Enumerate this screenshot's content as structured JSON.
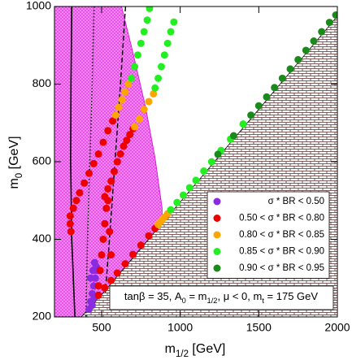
{
  "chart_data": {
    "type": "scatter",
    "x_label": [
      "m",
      "1/2",
      " [GeV]"
    ],
    "y_label": [
      "m",
      "0",
      " [GeV]"
    ],
    "annotation": [
      "tanβ = 35, A",
      "0",
      " = m",
      "1/2",
      ", μ < 0, m",
      "t",
      " = 175 GeV"
    ],
    "xlim": [
      200,
      2000
    ],
    "ylim": [
      200,
      1000
    ],
    "xticks": [
      500,
      1000,
      1500,
      2000
    ],
    "yticks": [
      200,
      400,
      600,
      800,
      1000
    ],
    "legend": "lower right",
    "areas": [
      {
        "color": "#ee88ee",
        "edge": "#dd00dd",
        "pattern": "dots",
        "x": [
          200,
          200,
          627,
          700,
          780,
          840,
          885,
          884,
          700,
          500,
          370
        ],
        "y": [
          200,
          1000,
          1000,
          880,
          740,
          610,
          480,
          441,
          353,
          257,
          200
        ]
      },
      {
        "color": "#5a2a2a",
        "edge": "#000000",
        "pattern": "bricks",
        "x": [
          370,
          500,
          700,
          884,
          1000,
          1500,
          2000,
          2000
        ],
        "y": [
          200,
          257,
          353,
          441,
          496,
          735,
          975,
          200
        ]
      }
    ],
    "lines": [
      {
        "style": "solid",
        "color": "#000000",
        "x": [
          310,
          305,
          303,
          310,
          330
        ],
        "y": [
          1000,
          800,
          600,
          400,
          200
        ]
      },
      {
        "style": "dotted",
        "color": "#000000",
        "x": [
          452,
          440,
          425,
          410,
          400
        ],
        "y": [
          1000,
          800,
          600,
          400,
          200
        ]
      },
      {
        "style": "dashed",
        "color": "#000000",
        "x": [
          652,
          620,
          585,
          550,
          524
        ],
        "y": [
          1000,
          800,
          600,
          400,
          263
        ]
      }
    ],
    "series": [
      {
        "name": "σ * BR < 0.50",
        "color": "#8a2be2",
        "x": [
          420,
          430,
          440,
          450,
          460,
          470,
          430,
          445,
          455,
          465,
          440,
          455
        ],
        "y": [
          220,
          240,
          260,
          280,
          300,
          320,
          300,
          320,
          340,
          330,
          230,
          250
        ]
      },
      {
        "name": "0.50 < σ * BR < 0.80",
        "color": "#ee0000",
        "x": [
          300,
          305,
          300,
          320,
          340,
          360,
          390,
          420,
          450,
          480,
          510,
          540,
          570,
          520,
          540,
          560,
          580,
          600,
          620,
          640,
          660,
          680,
          700,
          480,
          490,
          500,
          510,
          520,
          530,
          540,
          550,
          560,
          480,
          520,
          560,
          600,
          650,
          700,
          750,
          800,
          840
        ],
        "y": [
          440,
          420,
          460,
          480,
          500,
          520,
          545,
          570,
          595,
          620,
          650,
          680,
          705,
          510,
          530,
          550,
          575,
          600,
          620,
          640,
          655,
          670,
          685,
          280,
          320,
          360,
          400,
          440,
          480,
          500,
          420,
          360,
          256,
          275,
          294,
          313,
          337,
          361,
          385,
          409,
          428
        ]
      },
      {
        "name": "0.80 < σ * BR < 0.85",
        "color": "#ffa500",
        "x": [
          590,
          610,
          630,
          650,
          670,
          710,
          740,
          770,
          800,
          830,
          860,
          880,
          900,
          920
        ],
        "y": [
          720,
          740,
          760,
          780,
          800,
          690,
          710,
          735,
          755,
          775,
          438,
          447,
          457,
          466
        ]
      },
      {
        "name": "0.85 < σ * BR < 0.90",
        "color": "#22ee22",
        "x": [
          690,
          710,
          730,
          750,
          770,
          790,
          805,
          840,
          860,
          880,
          900,
          920,
          940,
          960,
          940,
          980,
          1020,
          1060,
          1100,
          1150,
          1200,
          1260,
          1320,
          1400
        ],
        "y": [
          815,
          845,
          875,
          905,
          935,
          965,
          995,
          790,
          815,
          845,
          875,
          905,
          935,
          960,
          476,
          495,
          514,
          533,
          552,
          576,
          600,
          629,
          658,
          697
        ]
      },
      {
        "name": "0.90 < σ * BR < 0.95",
        "color": "#1a8a1a",
        "x": [
          1240,
          1340,
          1450,
          1500,
          1550,
          1600,
          1650,
          1700,
          1750,
          1800,
          1850,
          1900,
          1950,
          1990
        ],
        "y": [
          619,
          667,
          720,
          744,
          767,
          791,
          815,
          839,
          863,
          887,
          911,
          935,
          959,
          978
        ]
      }
    ]
  }
}
